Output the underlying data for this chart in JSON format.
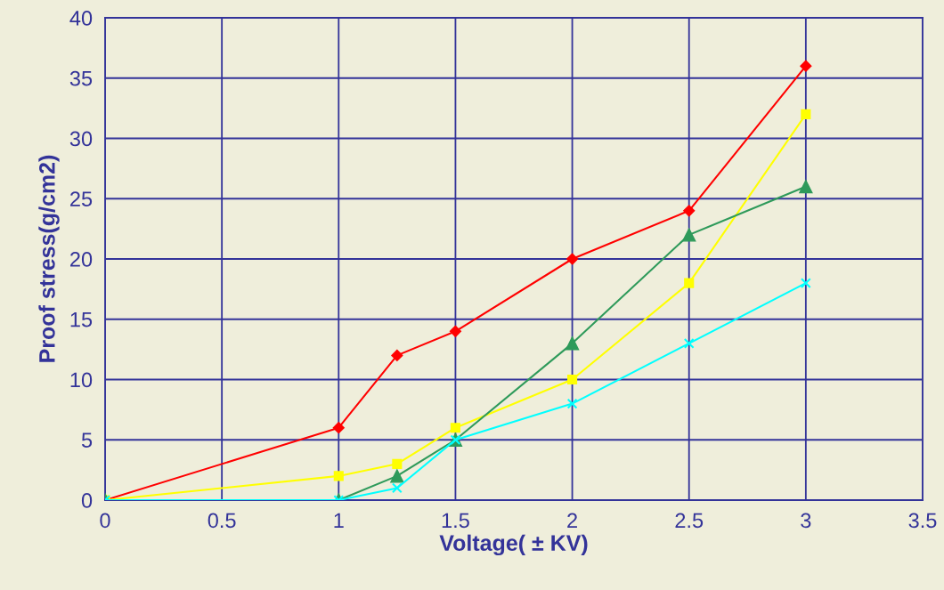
{
  "chart_data": {
    "type": "line",
    "xlabel": "Voltage( ± KV)",
    "ylabel": "Proof stress(g/cm2)",
    "xlim": [
      0,
      3.5
    ],
    "xticks": [
      0,
      0.5,
      1,
      1.5,
      2,
      2.5,
      3,
      3.5
    ],
    "ylim": [
      0,
      40
    ],
    "yticks": [
      0,
      5,
      10,
      15,
      20,
      25,
      30,
      35,
      40
    ],
    "grid": true,
    "legend": false,
    "line_style": "solid",
    "series": [
      {
        "color": "#ff0000",
        "marker": "diamond",
        "x": [
          0,
          1,
          1.25,
          1.5,
          2,
          2.5,
          3
        ],
        "values": [
          0,
          6,
          12,
          14,
          20,
          24,
          36
        ]
      },
      {
        "color": "#ffff00",
        "marker": "square",
        "x": [
          0,
          1,
          1.25,
          1.5,
          2,
          2.5,
          3
        ],
        "values": [
          0,
          2,
          3,
          6,
          10,
          18,
          32
        ]
      },
      {
        "color": "#2e9a5a",
        "marker": "triangle",
        "x": [
          0,
          1,
          1.25,
          1.5,
          2,
          2.5,
          3
        ],
        "values": [
          0,
          0,
          2,
          5,
          13,
          22,
          26
        ]
      },
      {
        "color": "#00ffff",
        "marker": "cross",
        "x": [
          0,
          1,
          1.25,
          1.5,
          2,
          2.5,
          3
        ],
        "values": [
          0,
          0,
          1,
          5,
          8,
          13,
          18
        ]
      }
    ]
  }
}
